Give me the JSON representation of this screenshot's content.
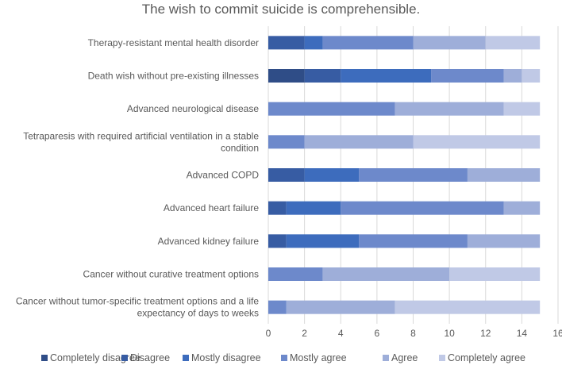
{
  "chart_data": {
    "type": "bar",
    "orientation": "horizontal",
    "stacked": true,
    "title": "The wish to commit suicide is comprehensible.",
    "xlabel": "",
    "ylabel": "",
    "xlim": [
      0,
      16
    ],
    "xticks": [
      0,
      2,
      4,
      6,
      8,
      10,
      12,
      14,
      16
    ],
    "grid": true,
    "legend_position": "bottom",
    "categories": [
      [
        "Therapy-resistant mental health disorder"
      ],
      [
        "Death wish without pre-existing illnesses"
      ],
      [
        "Advanced neurological disease"
      ],
      [
        "Tetraparesis with required artificial ventilation in a stable",
        "condition"
      ],
      [
        "Advanced COPD"
      ],
      [
        "Advanced heart failure"
      ],
      [
        "Advanced kidney failure"
      ],
      [
        "Cancer without curative treatment options"
      ],
      [
        "Cancer without tumor-specific treatment options and a life",
        "expectancy of days to weeks"
      ]
    ],
    "series": [
      {
        "name": "Completely disagree",
        "color": "#2f4d87",
        "values": [
          0,
          2,
          0,
          0,
          0,
          0,
          0,
          0,
          0
        ]
      },
      {
        "name": "Disagree",
        "color": "#375ca3",
        "values": [
          2,
          2,
          0,
          0,
          2,
          1,
          1,
          0,
          0
        ]
      },
      {
        "name": "Mostly disagree",
        "color": "#3d6cbd",
        "values": [
          1,
          5,
          0,
          0,
          3,
          3,
          4,
          0,
          0
        ]
      },
      {
        "name": "Mostly agree",
        "color": "#6d89cb",
        "values": [
          5,
          4,
          7,
          2,
          6,
          9,
          6,
          3,
          1
        ]
      },
      {
        "name": "Agree",
        "color": "#9eaed9",
        "values": [
          4,
          1,
          6,
          6,
          4,
          2,
          4,
          7,
          6
        ]
      },
      {
        "name": "Completely agree",
        "color": "#c0c9e6",
        "values": [
          3,
          1,
          2,
          7,
          0,
          0,
          0,
          5,
          8
        ]
      }
    ]
  }
}
